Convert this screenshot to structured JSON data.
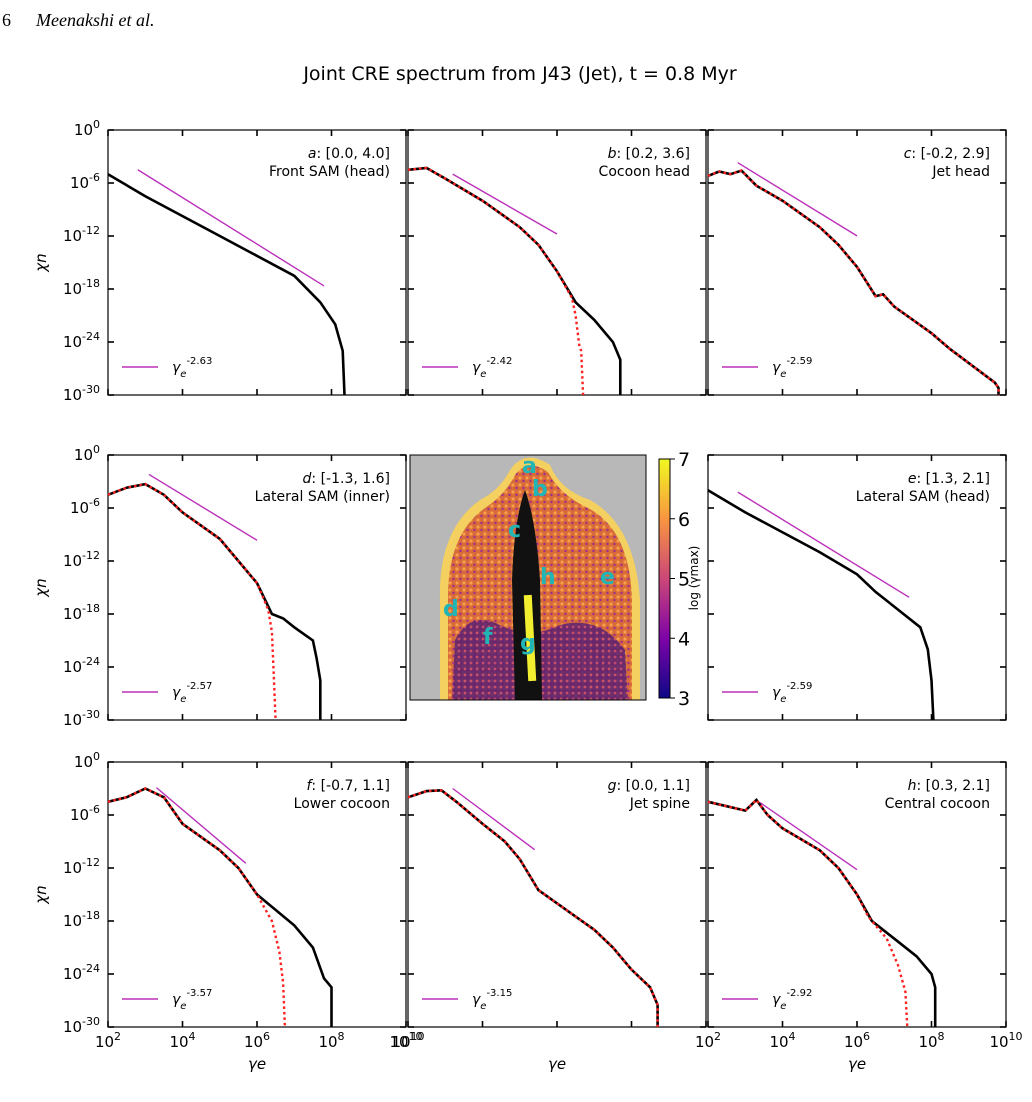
{
  "page": {
    "page_number": "6",
    "running_head": "Meenakshi et al."
  },
  "figure": {
    "title": "Joint CRE spectrum from J43 (Jet),  t = 0.8 Myr",
    "x_label": "γe",
    "y_label": "χn",
    "colorbar_label": "log (γmax)",
    "colorbar_ticks": [
      "3",
      "4",
      "5",
      "6",
      "7"
    ],
    "map_labels": [
      "a",
      "b",
      "c",
      "d",
      "e",
      "f",
      "g",
      "h"
    ],
    "colors": {
      "spectrum": "#000000",
      "fit": "#ff2020",
      "powerlaw": "#bb30bb",
      "map_label": "#22b5b5"
    }
  },
  "chart_data": {
    "type": "line",
    "x_scale": "log",
    "y_scale": "log",
    "xlim": [
      100,
      10000000000
    ],
    "ylim": [
      1e-30,
      1
    ],
    "x_ticks": [
      "10^2",
      "10^4",
      "10^6",
      "10^8",
      "10^10"
    ],
    "y_ticks": [
      "10^0",
      "10^-6",
      "10^-12",
      "10^-18",
      "10^-24",
      "10^-30"
    ],
    "panels": [
      {
        "id": "a",
        "region": "[0.0, 4.0]",
        "name": "Front SAM (head)",
        "powerlaw_index": "-2.63",
        "black": [
          [
            2,
            -5
          ],
          [
            3,
            -7.5
          ],
          [
            5,
            -12
          ],
          [
            7,
            -16.5
          ],
          [
            7.7,
            -19.5
          ],
          [
            8.1,
            -22
          ],
          [
            8.3,
            -25
          ],
          [
            8.35,
            -30
          ]
        ],
        "red": [],
        "pl_range": [
          2.8,
          7.8
        ],
        "pl_anchor": -4.5
      },
      {
        "id": "b",
        "region": "[0.2, 3.6]",
        "name": "Cocoon head",
        "powerlaw_index": "-2.42",
        "black": [
          [
            2,
            -4.5
          ],
          [
            2.5,
            -4.3
          ],
          [
            3,
            -5.5
          ],
          [
            4,
            -8
          ],
          [
            5,
            -11
          ],
          [
            5.5,
            -13
          ],
          [
            6,
            -16
          ],
          [
            6.5,
            -19.5
          ],
          [
            7,
            -21.5
          ],
          [
            7.5,
            -24
          ],
          [
            7.7,
            -26
          ],
          [
            7.7,
            -30
          ]
        ],
        "red": [
          [
            2,
            -4.5
          ],
          [
            2.5,
            -4.3
          ],
          [
            3,
            -5.5
          ],
          [
            4,
            -8
          ],
          [
            5,
            -11
          ],
          [
            5.5,
            -13
          ],
          [
            6,
            -16
          ],
          [
            6.4,
            -19
          ],
          [
            6.5,
            -21
          ],
          [
            6.6,
            -24.5
          ],
          [
            6.65,
            -25
          ],
          [
            6.7,
            -30
          ]
        ],
        "pl_range": [
          3.2,
          6.0
        ],
        "pl_anchor": -5.0
      },
      {
        "id": "c",
        "region": "[-0.2, 2.9]",
        "name": "Jet head",
        "powerlaw_index": "-2.59",
        "black": [
          [
            2,
            -5.2
          ],
          [
            2.3,
            -4.7
          ],
          [
            2.6,
            -5
          ],
          [
            2.9,
            -4.6
          ],
          [
            3.3,
            -6.3
          ],
          [
            4,
            -8
          ],
          [
            5,
            -11
          ],
          [
            5.5,
            -13
          ],
          [
            6,
            -15.5
          ],
          [
            6.5,
            -18.8
          ],
          [
            6.7,
            -18.6
          ],
          [
            7,
            -20
          ],
          [
            8,
            -23
          ],
          [
            8.5,
            -24.8
          ],
          [
            9.7,
            -28.6
          ],
          [
            9.8,
            -29.2
          ],
          [
            9.8,
            -30
          ]
        ],
        "red": [
          [
            2,
            -5.2
          ],
          [
            2.3,
            -4.7
          ],
          [
            2.6,
            -5
          ],
          [
            2.9,
            -4.6
          ],
          [
            3.3,
            -6.3
          ],
          [
            4,
            -8
          ],
          [
            5,
            -11
          ],
          [
            5.5,
            -13
          ],
          [
            6,
            -15.5
          ],
          [
            6.5,
            -18.8
          ],
          [
            6.7,
            -18.6
          ],
          [
            7,
            -20
          ],
          [
            8,
            -23
          ],
          [
            8.5,
            -24.8
          ],
          [
            9.7,
            -28.6
          ],
          [
            9.8,
            -29.2
          ],
          [
            9.8,
            -30
          ]
        ],
        "pl_range": [
          2.8,
          6.0
        ],
        "pl_anchor": -3.7
      },
      {
        "id": "d",
        "region": "[-1.3, 1.6]",
        "name": "Lateral SAM (inner)",
        "powerlaw_index": "-2.57",
        "black": [
          [
            2,
            -4.5
          ],
          [
            2.5,
            -3.7
          ],
          [
            3,
            -3.3
          ],
          [
            3.5,
            -4.5
          ],
          [
            4,
            -6.5
          ],
          [
            5,
            -9.5
          ],
          [
            5.5,
            -12
          ],
          [
            6,
            -14.5
          ],
          [
            6.4,
            -18
          ],
          [
            6.7,
            -18.5
          ],
          [
            7,
            -19.5
          ],
          [
            7.5,
            -21
          ],
          [
            7.6,
            -23
          ],
          [
            7.7,
            -25.5
          ],
          [
            7.7,
            -30
          ]
        ],
        "red": [
          [
            2,
            -4.5
          ],
          [
            2.5,
            -3.7
          ],
          [
            3,
            -3.3
          ],
          [
            3.5,
            -4.5
          ],
          [
            4,
            -6.5
          ],
          [
            5,
            -9.5
          ],
          [
            5.5,
            -12
          ],
          [
            6,
            -14.5
          ],
          [
            6.3,
            -17.5
          ],
          [
            6.4,
            -20
          ],
          [
            6.45,
            -25
          ],
          [
            6.5,
            -30
          ]
        ],
        "pl_range": [
          3.1,
          6.0
        ],
        "pl_anchor": -2.2
      },
      {
        "id": "e",
        "region": "[1.3, 2.1]",
        "name": "Lateral SAM (head)",
        "powerlaw_index": "-2.59",
        "black": [
          [
            2,
            -4
          ],
          [
            3,
            -6.5
          ],
          [
            5,
            -11
          ],
          [
            6,
            -13.5
          ],
          [
            6.5,
            -15.5
          ],
          [
            7.1,
            -17.5
          ],
          [
            7.7,
            -19.5
          ],
          [
            7.9,
            -22
          ],
          [
            8.0,
            -25.5
          ],
          [
            8.05,
            -30
          ]
        ],
        "red": [],
        "pl_range": [
          2.8,
          7.4
        ],
        "pl_anchor": -4.2
      },
      {
        "id": "f",
        "region": "[-0.7, 1.1]",
        "name": "Lower cocoon",
        "powerlaw_index": "-3.57",
        "black": [
          [
            2,
            -4.5
          ],
          [
            2.5,
            -4
          ],
          [
            3,
            -3
          ],
          [
            3.5,
            -4
          ],
          [
            4,
            -7
          ],
          [
            5,
            -10
          ],
          [
            5.5,
            -12
          ],
          [
            6,
            -15
          ],
          [
            7,
            -18.5
          ],
          [
            7.5,
            -21
          ],
          [
            7.8,
            -24.5
          ],
          [
            8,
            -25.5
          ],
          [
            8.0,
            -30
          ]
        ],
        "red": [
          [
            2,
            -4.5
          ],
          [
            2.5,
            -4
          ],
          [
            3,
            -3
          ],
          [
            3.5,
            -4
          ],
          [
            4,
            -7
          ],
          [
            5,
            -10
          ],
          [
            5.5,
            -12
          ],
          [
            6,
            -15
          ],
          [
            6.4,
            -18
          ],
          [
            6.6,
            -21.5
          ],
          [
            6.7,
            -25
          ],
          [
            6.75,
            -30
          ]
        ],
        "pl_range": [
          3.3,
          5.7
        ],
        "pl_anchor": -2.9
      },
      {
        "id": "g",
        "region": "[0.0, 1.1]",
        "name": "Jet spine",
        "powerlaw_index": "-3.15",
        "black": [
          [
            2,
            -4
          ],
          [
            2.5,
            -3.3
          ],
          [
            2.9,
            -3.2
          ],
          [
            3.3,
            -4.5
          ],
          [
            4,
            -7
          ],
          [
            4.6,
            -9
          ],
          [
            5,
            -11
          ],
          [
            5.5,
            -14.5
          ],
          [
            6,
            -16
          ],
          [
            6.5,
            -17.5
          ],
          [
            7,
            -19
          ],
          [
            7.5,
            -21
          ],
          [
            8,
            -23.5
          ],
          [
            8.5,
            -25.5
          ],
          [
            8.7,
            -27.5
          ],
          [
            8.7,
            -30
          ]
        ],
        "red": [
          [
            2,
            -4
          ],
          [
            2.5,
            -3.3
          ],
          [
            2.9,
            -3.2
          ],
          [
            3.3,
            -4.5
          ],
          [
            4,
            -7
          ],
          [
            4.6,
            -9
          ],
          [
            5,
            -11
          ],
          [
            5.5,
            -14.5
          ],
          [
            6,
            -16
          ],
          [
            6.5,
            -17.5
          ],
          [
            7,
            -19
          ],
          [
            7.5,
            -21
          ],
          [
            8,
            -23.5
          ],
          [
            8.5,
            -25.5
          ],
          [
            8.7,
            -27.5
          ],
          [
            8.7,
            -30
          ]
        ],
        "pl_range": [
          3.2,
          5.4
        ],
        "pl_anchor": -3.0
      },
      {
        "id": "h",
        "region": "[0.3, 2.1]",
        "name": "Central cocoon",
        "powerlaw_index": "-2.92",
        "black": [
          [
            2,
            -4.5
          ],
          [
            2.5,
            -5
          ],
          [
            3,
            -5.5
          ],
          [
            3.3,
            -4.3
          ],
          [
            3.6,
            -6
          ],
          [
            4,
            -7.5
          ],
          [
            5,
            -10
          ],
          [
            5.5,
            -12
          ],
          [
            6,
            -15
          ],
          [
            6.4,
            -18
          ],
          [
            7,
            -20
          ],
          [
            7.6,
            -22
          ],
          [
            8,
            -24
          ],
          [
            8.1,
            -25.5
          ],
          [
            8.1,
            -30
          ]
        ],
        "red": [
          [
            2,
            -4.5
          ],
          [
            2.5,
            -5
          ],
          [
            3,
            -5.5
          ],
          [
            3.3,
            -4.3
          ],
          [
            3.6,
            -6
          ],
          [
            4,
            -7.5
          ],
          [
            5,
            -10
          ],
          [
            5.5,
            -12
          ],
          [
            6,
            -15
          ],
          [
            6.3,
            -17.5
          ],
          [
            6.8,
            -20
          ],
          [
            7.1,
            -23
          ],
          [
            7.3,
            -26
          ],
          [
            7.35,
            -30
          ]
        ],
        "pl_range": [
          3.4,
          6.0
        ],
        "pl_anchor": -4.6
      }
    ]
  }
}
